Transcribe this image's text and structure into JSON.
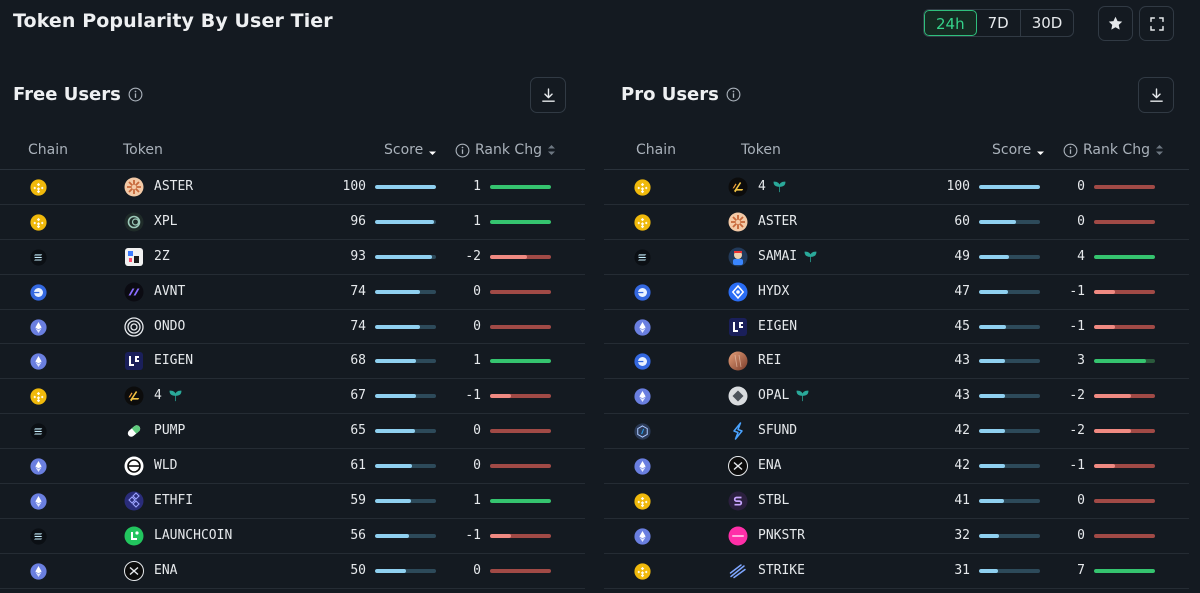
{
  "title": "Token Popularity By User Tier",
  "ranges": [
    "24h",
    "7D",
    "30D"
  ],
  "active_range": "24h",
  "columns": {
    "chain": "Chain",
    "token": "Token",
    "score": "Score",
    "rank": "Rank Chg"
  },
  "panels": [
    {
      "title": "Free Users",
      "rows": [
        {
          "chain": "bnb",
          "icon": "aster",
          "token": "ASTER",
          "badge": false,
          "score": "100",
          "score_pct": 100,
          "rank": "1",
          "rank_val": 1
        },
        {
          "chain": "bnb",
          "icon": "xpl",
          "token": "XPL",
          "badge": false,
          "score": "96",
          "score_pct": 96,
          "rank": "1",
          "rank_val": 1
        },
        {
          "chain": "solana",
          "icon": "2z",
          "token": "2Z",
          "badge": false,
          "score": "93",
          "score_pct": 93,
          "rank": "-2",
          "rank_val": -2
        },
        {
          "chain": "base",
          "icon": "avnt",
          "token": "AVNT",
          "badge": false,
          "score": "74",
          "score_pct": 74,
          "rank": "0",
          "rank_val": 0
        },
        {
          "chain": "ethereum",
          "icon": "ondo",
          "token": "ONDO",
          "badge": false,
          "score": "74",
          "score_pct": 74,
          "rank": "0",
          "rank_val": 0
        },
        {
          "chain": "ethereum",
          "icon": "eigen",
          "token": "EIGEN",
          "badge": false,
          "score": "68",
          "score_pct": 68,
          "rank": "1",
          "rank_val": 1
        },
        {
          "chain": "bnb",
          "icon": "four",
          "token": "4",
          "badge": true,
          "score": "67",
          "score_pct": 67,
          "rank": "-1",
          "rank_val": -1
        },
        {
          "chain": "solana",
          "icon": "pump",
          "token": "PUMP",
          "badge": false,
          "score": "65",
          "score_pct": 65,
          "rank": "0",
          "rank_val": 0
        },
        {
          "chain": "ethereum",
          "icon": "wld",
          "token": "WLD",
          "badge": false,
          "score": "61",
          "score_pct": 61,
          "rank": "0",
          "rank_val": 0
        },
        {
          "chain": "ethereum",
          "icon": "ethfi",
          "token": "ETHFI",
          "badge": false,
          "score": "59",
          "score_pct": 59,
          "rank": "1",
          "rank_val": 1
        },
        {
          "chain": "solana",
          "icon": "launchcoin",
          "token": "LAUNCHCOIN",
          "badge": false,
          "score": "56",
          "score_pct": 56,
          "rank": "-1",
          "rank_val": -1
        },
        {
          "chain": "ethereum",
          "icon": "ena",
          "token": "ENA",
          "badge": false,
          "score": "50",
          "score_pct": 50,
          "rank": "0",
          "rank_val": 0
        }
      ]
    },
    {
      "title": "Pro Users",
      "rows": [
        {
          "chain": "bnb",
          "icon": "four",
          "token": "4",
          "badge": true,
          "score": "100",
          "score_pct": 100,
          "rank": "0",
          "rank_val": 0
        },
        {
          "chain": "bnb",
          "icon": "aster",
          "token": "ASTER",
          "badge": false,
          "score": "60",
          "score_pct": 60,
          "rank": "0",
          "rank_val": 0
        },
        {
          "chain": "solana",
          "icon": "samai",
          "token": "SAMAI",
          "badge": true,
          "score": "49",
          "score_pct": 49,
          "rank": "4",
          "rank_val": 4
        },
        {
          "chain": "base",
          "icon": "hydx",
          "token": "HYDX",
          "badge": false,
          "score": "47",
          "score_pct": 47,
          "rank": "-1",
          "rank_val": -1
        },
        {
          "chain": "ethereum",
          "icon": "eigen",
          "token": "EIGEN",
          "badge": false,
          "score": "45",
          "score_pct": 45,
          "rank": "-1",
          "rank_val": -1
        },
        {
          "chain": "base",
          "icon": "rei",
          "token": "REI",
          "badge": false,
          "score": "43",
          "score_pct": 43,
          "rank": "3",
          "rank_val": 3
        },
        {
          "chain": "ethereum",
          "icon": "opal",
          "token": "OPAL",
          "badge": true,
          "score": "43",
          "score_pct": 43,
          "rank": "-2",
          "rank_val": -2
        },
        {
          "chain": "arbitrum",
          "icon": "sfund",
          "token": "SFUND",
          "badge": false,
          "score": "42",
          "score_pct": 42,
          "rank": "-2",
          "rank_val": -2
        },
        {
          "chain": "ethereum",
          "icon": "ena",
          "token": "ENA",
          "badge": false,
          "score": "42",
          "score_pct": 42,
          "rank": "-1",
          "rank_val": -1
        },
        {
          "chain": "bnb",
          "icon": "stbl",
          "token": "STBL",
          "badge": false,
          "score": "41",
          "score_pct": 41,
          "rank": "0",
          "rank_val": 0
        },
        {
          "chain": "ethereum",
          "icon": "pnkstr",
          "token": "PNKSTR",
          "badge": false,
          "score": "32",
          "score_pct": 32,
          "rank": "0",
          "rank_val": 0
        },
        {
          "chain": "bnb",
          "icon": "strike",
          "token": "STRIKE",
          "badge": false,
          "score": "31",
          "score_pct": 31,
          "rank": "7",
          "rank_val": 7
        }
      ]
    }
  ],
  "colors": {
    "accent_green": "#35d28a",
    "score_bar": "#8fd0f0",
    "rank_up": "#35c46f",
    "rank_down": "#f08a82",
    "rank_neutral": "#a14a46",
    "background": "#141a21"
  }
}
